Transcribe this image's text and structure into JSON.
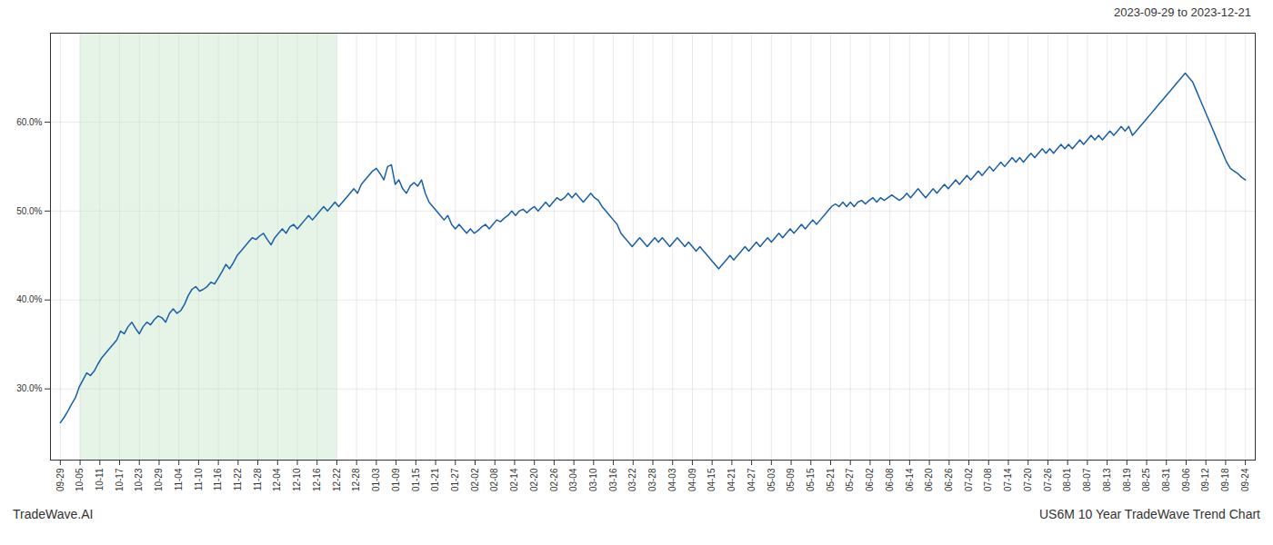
{
  "chart_data": {
    "type": "line",
    "title": "2023-09-29 to 2023-12-21",
    "annotations": [
      {
        "text": "TradeWave.AI"
      },
      {
        "text": "US6M 10 Year TradeWave Trend Chart"
      }
    ],
    "color": "#1a5fa8",
    "highlight": {
      "from": "10-05",
      "to": "12-22",
      "color": "#c8e6c9"
    },
    "grid": true,
    "ylim": [
      22.0,
      70.0
    ],
    "yticks": [
      {
        "value": 30.0,
        "label": "30.0%"
      },
      {
        "value": 40.0,
        "label": "40.0%"
      },
      {
        "value": 50.0,
        "label": "50.0%"
      },
      {
        "value": 60.0,
        "label": "60.0%"
      }
    ],
    "xlim": [
      -0.5,
      60.5
    ],
    "xticks": [
      {
        "value": 0,
        "label": "09-29"
      },
      {
        "value": 1,
        "label": "10-05"
      },
      {
        "value": 2,
        "label": "10-11"
      },
      {
        "value": 3,
        "label": "10-17"
      },
      {
        "value": 4,
        "label": "10-23"
      },
      {
        "value": 5,
        "label": "10-29"
      },
      {
        "value": 6,
        "label": "11-04"
      },
      {
        "value": 7,
        "label": "11-10"
      },
      {
        "value": 8,
        "label": "11-16"
      },
      {
        "value": 9,
        "label": "11-22"
      },
      {
        "value": 10,
        "label": "11-28"
      },
      {
        "value": 11,
        "label": "12-04"
      },
      {
        "value": 12,
        "label": "12-10"
      },
      {
        "value": 13,
        "label": "12-16"
      },
      {
        "value": 14,
        "label": "12-22"
      },
      {
        "value": 15,
        "label": "12-28"
      },
      {
        "value": 16,
        "label": "01-03"
      },
      {
        "value": 17,
        "label": "01-09"
      },
      {
        "value": 18,
        "label": "01-15"
      },
      {
        "value": 19,
        "label": "01-21"
      },
      {
        "value": 20,
        "label": "01-27"
      },
      {
        "value": 21,
        "label": "02-02"
      },
      {
        "value": 22,
        "label": "02-08"
      },
      {
        "value": 23,
        "label": "02-14"
      },
      {
        "value": 24,
        "label": "02-20"
      },
      {
        "value": 25,
        "label": "02-26"
      },
      {
        "value": 26,
        "label": "03-04"
      },
      {
        "value": 27,
        "label": "03-10"
      },
      {
        "value": 28,
        "label": "03-16"
      },
      {
        "value": 29,
        "label": "03-22"
      },
      {
        "value": 30,
        "label": "03-28"
      },
      {
        "value": 31,
        "label": "04-03"
      },
      {
        "value": 32,
        "label": "04-09"
      },
      {
        "value": 33,
        "label": "04-15"
      },
      {
        "value": 34,
        "label": "04-21"
      },
      {
        "value": 35,
        "label": "04-27"
      },
      {
        "value": 36,
        "label": "05-03"
      },
      {
        "value": 37,
        "label": "05-09"
      },
      {
        "value": 38,
        "label": "05-15"
      },
      {
        "value": 39,
        "label": "05-21"
      },
      {
        "value": 40,
        "label": "05-27"
      },
      {
        "value": 41,
        "label": "06-02"
      },
      {
        "value": 42,
        "label": "06-08"
      },
      {
        "value": 43,
        "label": "06-14"
      },
      {
        "value": 44,
        "label": "06-20"
      },
      {
        "value": 45,
        "label": "06-26"
      },
      {
        "value": 46,
        "label": "07-02"
      },
      {
        "value": 47,
        "label": "07-08"
      },
      {
        "value": 48,
        "label": "07-14"
      },
      {
        "value": 49,
        "label": "07-20"
      },
      {
        "value": 50,
        "label": "07-26"
      },
      {
        "value": 51,
        "label": "08-01"
      },
      {
        "value": 52,
        "label": "08-07"
      },
      {
        "value": 53,
        "label": "08-13"
      },
      {
        "value": 54,
        "label": "08-19"
      },
      {
        "value": 55,
        "label": "08-25"
      },
      {
        "value": 56,
        "label": "08-31"
      },
      {
        "value": 57,
        "label": "09-06"
      },
      {
        "value": 58,
        "label": "09-12"
      },
      {
        "value": 59,
        "label": "09-18"
      },
      {
        "value": 60,
        "label": "09-24"
      }
    ],
    "values": [
      26.2,
      26.8,
      27.5,
      28.3,
      29.0,
      30.2,
      31.0,
      31.8,
      31.5,
      32.0,
      32.8,
      33.5,
      34.0,
      34.5,
      35.0,
      35.5,
      36.5,
      36.2,
      37.0,
      37.5,
      36.8,
      36.2,
      37.0,
      37.5,
      37.2,
      37.8,
      38.2,
      38.0,
      37.5,
      38.5,
      39.0,
      38.5,
      38.8,
      39.5,
      40.5,
      41.2,
      41.5,
      41.0,
      41.2,
      41.5,
      42.0,
      41.8,
      42.5,
      43.2,
      44.0,
      43.5,
      44.2,
      45.0,
      45.5,
      46.0,
      46.5,
      47.0,
      46.8,
      47.2,
      47.5,
      46.8,
      46.2,
      47.0,
      47.5,
      48.0,
      47.5,
      48.2,
      48.5,
      48.0,
      48.5,
      49.0,
      49.5,
      49.0,
      49.5,
      50.0,
      50.5,
      50.0,
      50.5,
      51.0,
      50.5,
      51.0,
      51.5,
      52.0,
      52.5,
      52.0,
      53.0,
      53.5,
      54.0,
      54.5,
      54.8,
      54.2,
      53.5,
      55.0,
      55.2,
      53.0,
      53.5,
      52.5,
      52.0,
      52.8,
      53.2,
      52.8,
      53.5,
      52.0,
      51.0,
      50.5,
      50.0,
      49.5,
      49.0,
      49.5,
      48.5,
      48.0,
      48.5,
      48.0,
      47.5,
      48.0,
      47.5,
      47.8,
      48.2,
      48.5,
      48.0,
      48.5,
      49.0,
      48.8,
      49.2,
      49.5,
      50.0,
      49.5,
      50.0,
      50.2,
      49.8,
      50.2,
      50.5,
      50.0,
      50.5,
      51.0,
      50.5,
      51.0,
      51.5,
      51.2,
      51.5,
      52.0,
      51.5,
      52.0,
      51.5,
      51.0,
      51.5,
      52.0,
      51.5,
      51.2,
      50.5,
      50.0,
      49.5,
      49.0,
      48.5,
      47.5,
      47.0,
      46.5,
      46.0,
      46.5,
      47.0,
      46.5,
      46.0,
      46.5,
      47.0,
      46.5,
      47.0,
      46.5,
      46.0,
      46.5,
      47.0,
      46.5,
      46.0,
      46.5,
      46.0,
      45.5,
      46.0,
      45.5,
      45.0,
      44.5,
      44.0,
      43.5,
      44.0,
      44.5,
      45.0,
      44.5,
      45.0,
      45.5,
      46.0,
      45.5,
      46.0,
      46.5,
      46.0,
      46.5,
      47.0,
      46.5,
      47.0,
      47.5,
      47.0,
      47.5,
      48.0,
      47.5,
      48.0,
      48.5,
      48.0,
      48.5,
      49.0,
      48.5,
      49.0,
      49.5,
      50.0,
      50.5,
      50.8,
      50.5,
      51.0,
      50.5,
      51.0,
      50.5,
      51.0,
      51.2,
      50.8,
      51.2,
      51.5,
      51.0,
      51.5,
      51.2,
      51.5,
      51.8,
      51.5,
      51.2,
      51.5,
      52.0,
      51.5,
      52.0,
      52.5,
      52.0,
      51.5,
      52.0,
      52.5,
      52.0,
      52.5,
      53.0,
      52.5,
      53.0,
      53.5,
      53.0,
      53.5,
      54.0,
      53.5,
      54.0,
      54.5,
      54.0,
      54.5,
      55.0,
      54.5,
      55.0,
      55.5,
      55.0,
      55.5,
      56.0,
      55.5,
      56.0,
      55.5,
      56.0,
      56.5,
      56.0,
      56.5,
      57.0,
      56.5,
      57.0,
      56.5,
      57.0,
      57.5,
      57.0,
      57.5,
      57.0,
      57.5,
      58.0,
      57.5,
      58.0,
      58.5,
      58.0,
      58.5,
      58.0,
      58.5,
      59.0,
      58.5,
      59.0,
      59.5,
      59.0,
      59.5,
      58.5,
      59.0,
      59.5,
      60.0,
      60.5,
      61.0,
      61.5,
      62.0,
      62.5,
      63.0,
      63.5,
      64.0,
      64.5,
      65.0,
      65.5,
      65.0,
      64.5,
      63.5,
      62.5,
      61.5,
      60.5,
      59.5,
      58.5,
      57.5,
      56.5,
      55.5,
      54.8,
      54.5,
      54.2,
      53.8,
      53.5
    ]
  }
}
